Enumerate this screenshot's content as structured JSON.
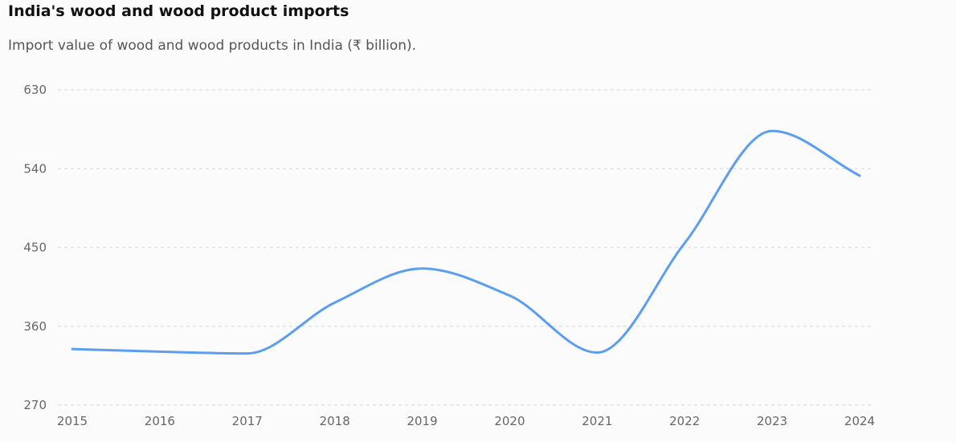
{
  "chart_data": {
    "type": "line",
    "title": "India's wood and wood product imports",
    "subtitle": "Import value of wood and wood products in India (₹ billion).",
    "xlabel": "",
    "ylabel": "",
    "categories": [
      "2015",
      "2016",
      "2017",
      "2018",
      "2019",
      "2020",
      "2021",
      "2022",
      "2023",
      "2024"
    ],
    "series": [
      {
        "values": [
          334,
          331,
          329,
          387,
          426,
          395,
          330,
          455,
          583,
          532
        ]
      }
    ],
    "yticks": [
      270,
      360,
      450,
      540,
      630
    ],
    "ylim": [
      270,
      630
    ],
    "grid": true,
    "grid_style": "dashed",
    "legend": "none",
    "line_color": "#5b9ef0",
    "grid_color": "#e2e2e2"
  }
}
